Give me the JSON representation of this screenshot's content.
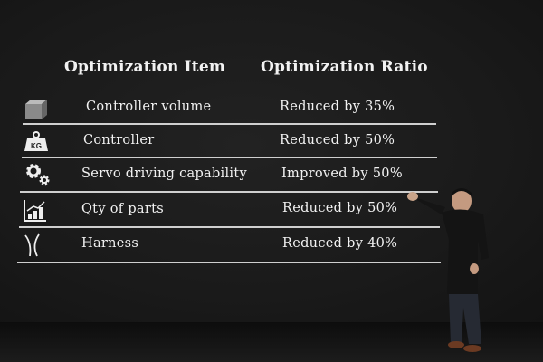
{
  "slide": {
    "headers": {
      "item": "Optimization Item",
      "ratio": "Optimization Ratio"
    },
    "rows": [
      {
        "icon": "cube-icon",
        "item": "Controller volume",
        "ratio": "Reduced by 35%"
      },
      {
        "icon": "weight-icon",
        "icon_text": "KG",
        "item": "Controller",
        "ratio": "Reduced by 50%"
      },
      {
        "icon": "gears-icon",
        "item": "Servo driving capability",
        "ratio": "Improved by 50%"
      },
      {
        "icon": "bar-chart-icon",
        "item": "Qty of parts",
        "ratio": "Reduced by 50%"
      },
      {
        "icon": "harness-icon",
        "item": "Harness",
        "ratio": "Reduced by 40%"
      }
    ]
  },
  "colors": {
    "background": "#1a1a1a",
    "text": "#f2f2f2",
    "divider": "#cfcfcf"
  }
}
